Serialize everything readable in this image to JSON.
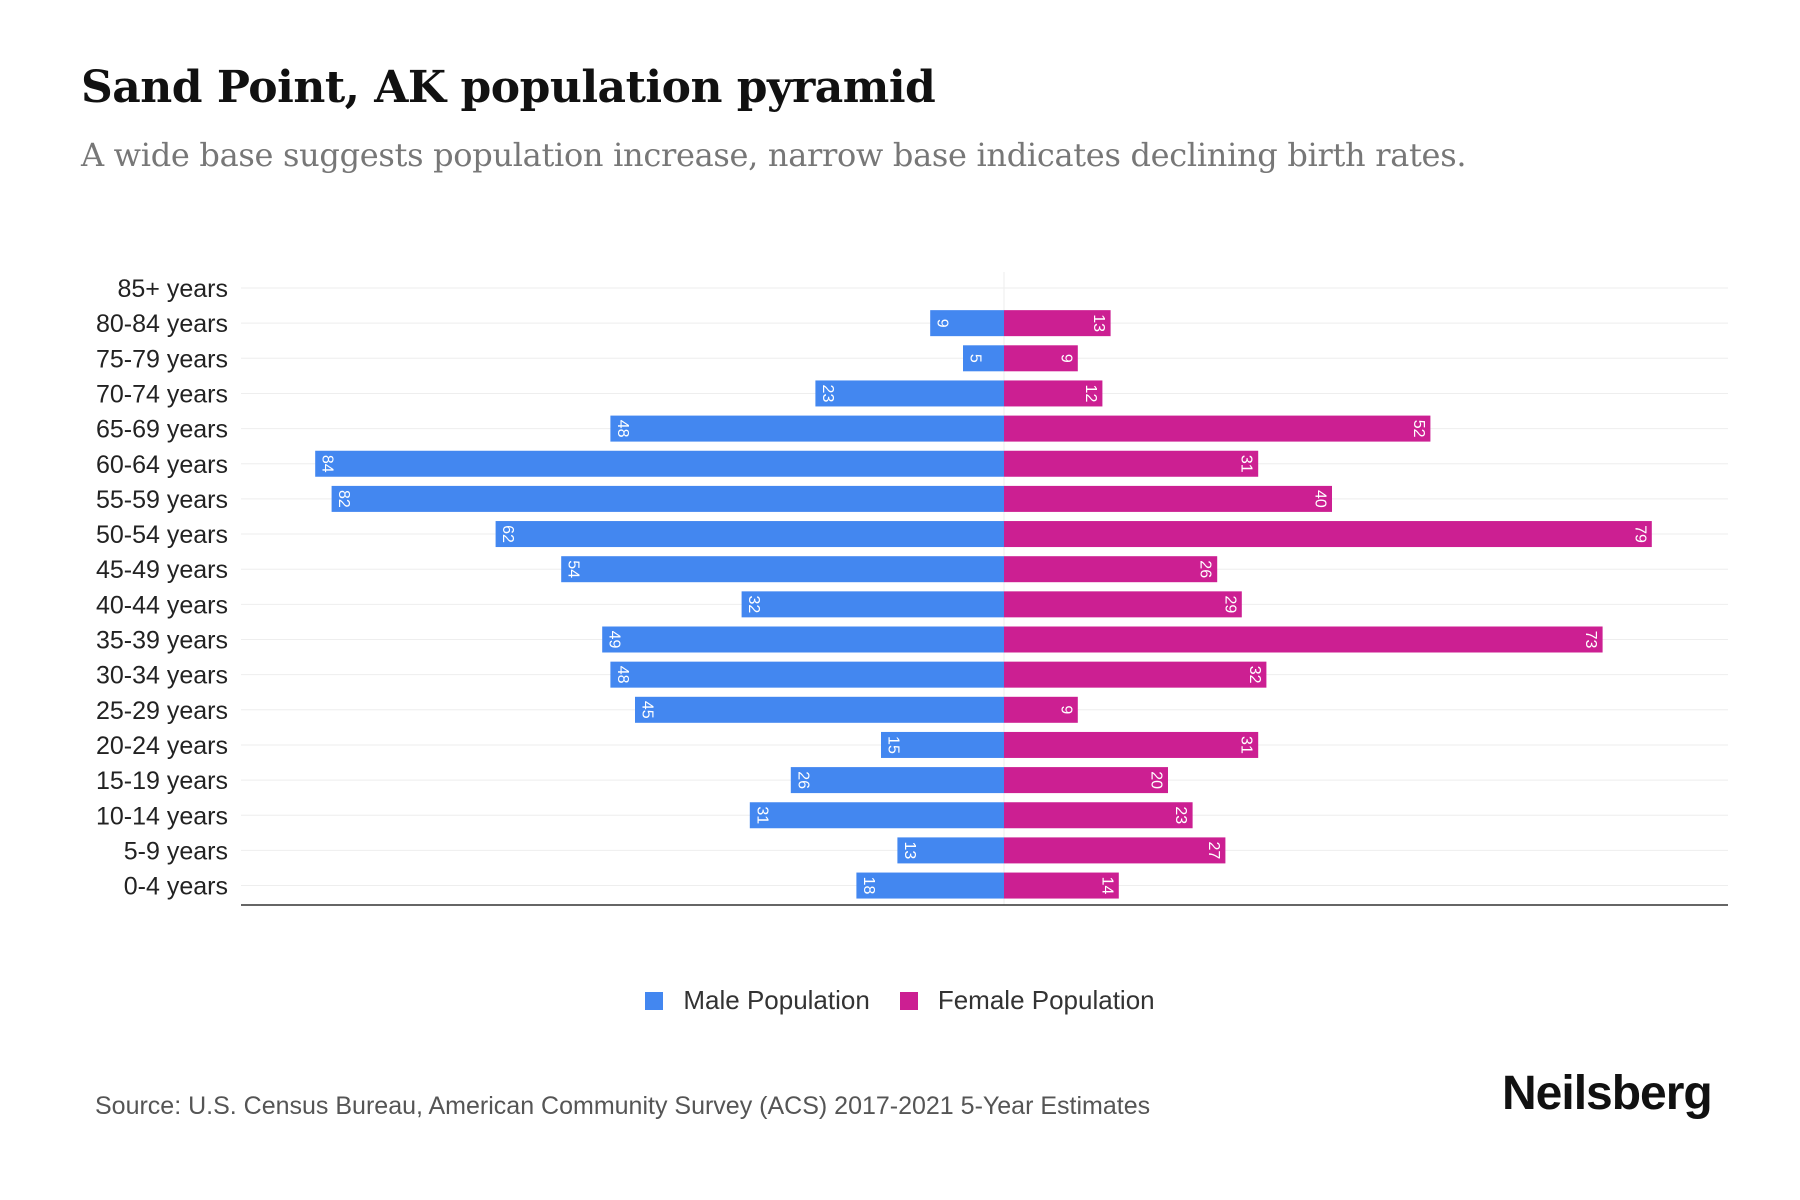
{
  "chart_data": {
    "type": "bar",
    "orientation": "horizontal-pyramid",
    "title": "Sand Point, AK population pyramid",
    "subtitle": "A wide base suggests population increase, narrow base indicates declining birth rates.",
    "categories": [
      "85+ years",
      "80-84 years",
      "75-79 years",
      "70-74 years",
      "65-69 years",
      "60-64 years",
      "55-59 years",
      "50-54 years",
      "45-49 years",
      "40-44 years",
      "35-39 years",
      "30-34 years",
      "25-29 years",
      "20-24 years",
      "15-19 years",
      "10-14 years",
      "5-9 years",
      "0-4 years"
    ],
    "series": [
      {
        "name": "Male Population",
        "color": "#4387f0",
        "values": [
          0,
          9,
          5,
          23,
          48,
          84,
          82,
          62,
          54,
          32,
          49,
          48,
          45,
          15,
          26,
          31,
          13,
          18
        ]
      },
      {
        "name": "Female Population",
        "color": "#cc1f92",
        "values": [
          0,
          13,
          9,
          12,
          52,
          31,
          40,
          79,
          26,
          29,
          73,
          32,
          9,
          31,
          20,
          23,
          27,
          14
        ]
      }
    ],
    "xlim": [
      -90,
      90
    ],
    "grid": true,
    "legend_position": "bottom"
  },
  "source": "Source: U.S. Census Bureau, American Community Survey (ACS) 2017-2021 5-Year Estimates",
  "logo": "Neilsberg"
}
